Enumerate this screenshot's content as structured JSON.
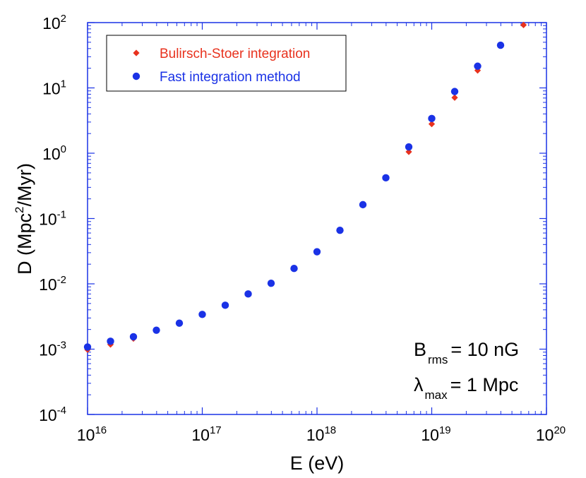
{
  "chart_data": {
    "type": "scatter",
    "title": "",
    "xlabel": "E (eV)",
    "ylabel": "D (Mpc2/Myr)",
    "ylabel_parts": {
      "prefix": "D (Mpc",
      "sup": "2",
      "suffix": "/Myr)"
    },
    "xscale": "log",
    "yscale": "log",
    "xlim_exp": [
      16,
      20
    ],
    "ylim_exp": [
      -4,
      2
    ],
    "x_ticks": [
      {
        "base": "10",
        "exp": "16"
      },
      {
        "base": "10",
        "exp": "17"
      },
      {
        "base": "10",
        "exp": "18"
      },
      {
        "base": "10",
        "exp": "19"
      },
      {
        "base": "10",
        "exp": "20"
      }
    ],
    "y_ticks": [
      {
        "base": "10",
        "exp": "-4"
      },
      {
        "base": "10",
        "exp": "-3"
      },
      {
        "base": "10",
        "exp": "-2"
      },
      {
        "base": "10",
        "exp": "-1"
      },
      {
        "base": "10",
        "exp": "0"
      },
      {
        "base": "10",
        "exp": "1"
      },
      {
        "base": "10",
        "exp": "2"
      }
    ],
    "grid": false,
    "legend_position": "top-left",
    "series": [
      {
        "name": "Bulirsch-Stoer integration",
        "marker": "diamond",
        "color": "#e8321e",
        "x": [
          1e+16,
          1.585e+16,
          2.512e+16,
          3.981e+16,
          6.31e+16,
          1e+17,
          1.585e+17,
          2.512e+17,
          3.981e+17,
          6.31e+17,
          1e+18,
          1.585e+18,
          2.512e+18,
          3.981e+18,
          6.31e+18,
          1e+19,
          1.585e+19,
          2.512e+19,
          3.981e+19,
          6.31e+19
        ],
        "y": [
          0.00098,
          0.00118,
          0.00145,
          0.00193,
          0.00248,
          0.00335,
          0.0047,
          0.007,
          0.0103,
          0.0173,
          0.0305,
          0.0655,
          0.163,
          0.42,
          1.05,
          2.8,
          7.1,
          18.5,
          45,
          92
        ]
      },
      {
        "name": "Fast integration method",
        "marker": "circle",
        "color": "#1a32e6",
        "x": [
          1e+16,
          1.585e+16,
          2.512e+16,
          3.981e+16,
          6.31e+16,
          1e+17,
          1.585e+17,
          2.512e+17,
          3.981e+17,
          6.31e+17,
          1e+18,
          1.585e+18,
          2.512e+18,
          3.981e+18,
          6.31e+18,
          1e+19,
          1.585e+19,
          2.512e+19,
          3.981e+19
        ],
        "y": [
          0.00108,
          0.00132,
          0.00155,
          0.00195,
          0.0025,
          0.0034,
          0.0047,
          0.007,
          0.0102,
          0.0172,
          0.031,
          0.066,
          0.163,
          0.42,
          1.25,
          3.4,
          8.8,
          21.5,
          45
        ]
      }
    ],
    "annotations": [
      {
        "main": "B",
        "sub": "rms",
        "rest": "= 10 nG"
      },
      {
        "main": "λ",
        "sub": "max",
        "rest": "= 1 Mpc"
      }
    ]
  }
}
